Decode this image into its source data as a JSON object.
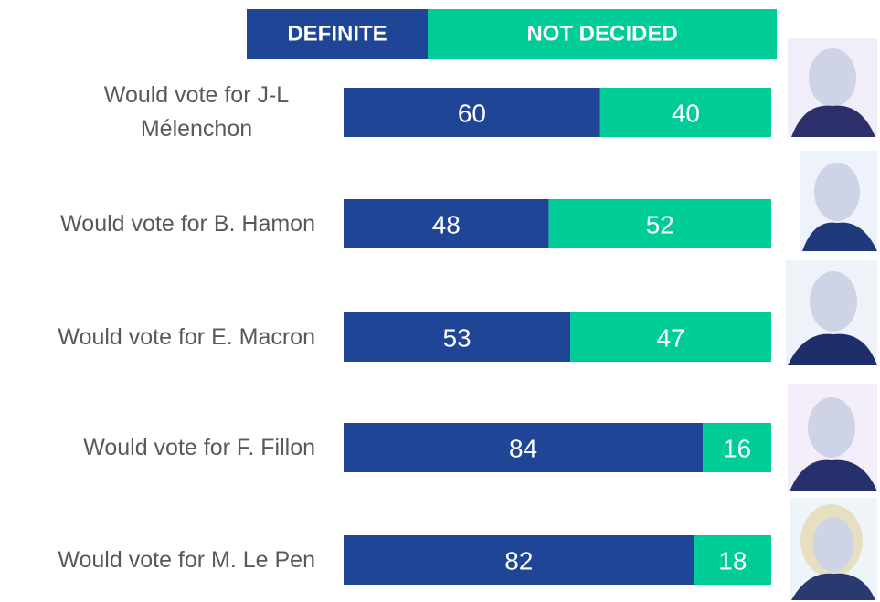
{
  "chart_data": {
    "type": "stacked-bar-horizontal",
    "categories": [
      "Would vote for J-L Mélenchon",
      "Would vote for B. Hamon",
      "Would vote for E. Macron",
      "Would vote for F. Fillon",
      "Would vote for M. Le Pen"
    ],
    "series": [
      {
        "name": "DEFINITE",
        "color": "#1f4596",
        "values": [
          60,
          48,
          53,
          84,
          82
        ]
      },
      {
        "name": "NOT DECIDED",
        "color": "#00cc98",
        "values": [
          40,
          52,
          47,
          16,
          18
        ]
      }
    ],
    "xlim": [
      0,
      100
    ]
  }
}
